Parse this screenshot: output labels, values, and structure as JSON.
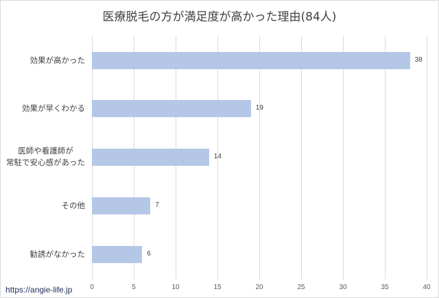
{
  "chart_data": {
    "type": "bar",
    "orientation": "horizontal",
    "title": "医療脱毛の方が満足度が高かった理由(84人)",
    "categories": [
      "効果が高かった",
      "効果が早くわかる",
      "医師や看護師が常駐で安心感があった",
      "その他",
      "勧誘がなかった"
    ],
    "category_lines": [
      [
        "効果が高かった"
      ],
      [
        "効果が早くわかる"
      ],
      [
        "医師や看護師が",
        "常駐で安心感があった"
      ],
      [
        "その他"
      ],
      [
        "勧誘がなかった"
      ]
    ],
    "values": [
      38,
      19,
      14,
      7,
      6
    ],
    "data_labels": [
      "38",
      "19",
      "14",
      "7",
      "6"
    ],
    "xlabel": "",
    "ylabel": "",
    "xlim": [
      0,
      40
    ],
    "xticks": [
      "0",
      "5",
      "10",
      "15",
      "20",
      "25",
      "30",
      "35",
      "40"
    ],
    "grid": true,
    "legend": null,
    "bar_color": "#b4c7e7"
  },
  "watermark": "https://angie-life.jp"
}
